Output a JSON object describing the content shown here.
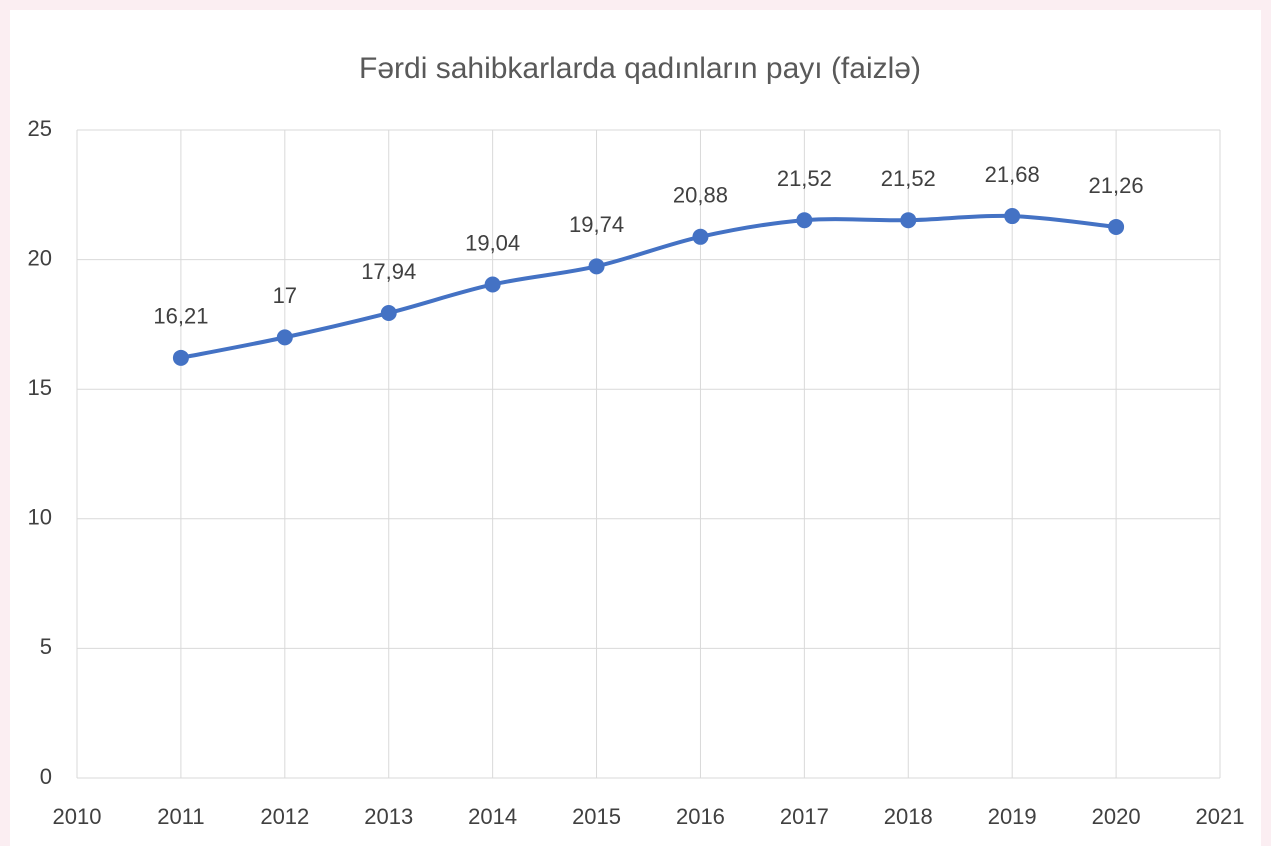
{
  "chart_data": {
    "type": "line",
    "title": "Fərdi sahibkarlarda qadınların payı (faizlə)",
    "x": [
      2011,
      2012,
      2013,
      2014,
      2015,
      2016,
      2017,
      2018,
      2019,
      2020
    ],
    "series": [
      {
        "color": "#4472c4",
        "values": [
          16.21,
          17,
          17.94,
          19.04,
          19.74,
          20.88,
          21.52,
          21.52,
          21.68,
          21.26
        ],
        "value_labels": [
          "16,21",
          "17",
          "17,94",
          "19,04",
          "19,74",
          "20,88",
          "21,52",
          "21,52",
          "21,68",
          "21,26"
        ]
      }
    ],
    "xlim": [
      2010,
      2021
    ],
    "xticks": [
      2010,
      2011,
      2012,
      2013,
      2014,
      2015,
      2016,
      2017,
      2018,
      2019,
      2020,
      2021
    ],
    "ylim": [
      0,
      25
    ],
    "yticks": [
      0,
      5,
      10,
      15,
      20,
      25
    ],
    "grid": true
  }
}
